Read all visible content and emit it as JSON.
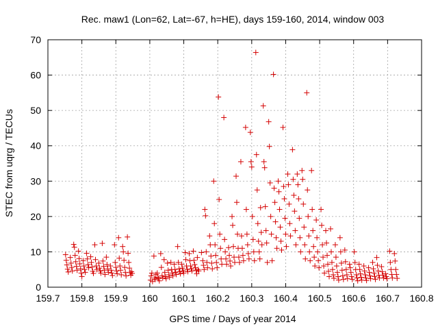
{
  "chart_data": {
    "type": "scatter",
    "title": "Rec. maw1 (Lon=62, Lat=-67, h=HE), days 159-160, 2014, window 003",
    "xlabel": "GPS time / Days of year 2014",
    "ylabel": "STEC from uqrg / TECUs",
    "xlim": [
      159.7,
      160.8
    ],
    "ylim": [
      0,
      70
    ],
    "xticks": [
      "159.7",
      "159.8",
      "159.9",
      "160",
      "160.1",
      "160.2",
      "160.3",
      "160.4",
      "160.5",
      "160.6",
      "160.7",
      "160.8"
    ],
    "yticks": [
      "0",
      "10",
      "20",
      "30",
      "40",
      "50",
      "60",
      "70"
    ],
    "grid": true,
    "marker": "plus",
    "color": "#d40000",
    "points": [
      [
        159.752,
        9.2
      ],
      [
        159.754,
        7.6
      ],
      [
        159.756,
        6.3
      ],
      [
        159.758,
        5.1
      ],
      [
        159.76,
        4.3
      ],
      [
        159.766,
        8.4
      ],
      [
        159.768,
        6.8
      ],
      [
        159.77,
        5.6
      ],
      [
        159.772,
        4.6
      ],
      [
        159.776,
        12.1
      ],
      [
        159.778,
        11.3
      ],
      [
        159.78,
        9.0
      ],
      [
        159.782,
        7.2
      ],
      [
        159.784,
        5.9
      ],
      [
        159.786,
        4.8
      ],
      [
        159.79,
        10.2
      ],
      [
        159.792,
        8.1
      ],
      [
        159.794,
        6.6
      ],
      [
        159.796,
        5.2
      ],
      [
        159.798,
        4.0
      ],
      [
        159.8,
        3.0
      ],
      [
        159.804,
        7.5
      ],
      [
        159.806,
        6.0
      ],
      [
        159.808,
        5.0
      ],
      [
        159.81,
        4.2
      ],
      [
        159.814,
        9.6
      ],
      [
        159.816,
        8.0
      ],
      [
        159.818,
        6.4
      ],
      [
        159.82,
        5.5
      ],
      [
        159.826,
        8.6
      ],
      [
        159.828,
        7.0
      ],
      [
        159.83,
        5.7
      ],
      [
        159.832,
        4.5
      ],
      [
        159.834,
        3.9
      ],
      [
        159.838,
        12.0
      ],
      [
        159.84,
        7.8
      ],
      [
        159.842,
        6.0
      ],
      [
        159.844,
        5.0
      ],
      [
        159.85,
        6.8
      ],
      [
        159.852,
        5.4
      ],
      [
        159.854,
        4.6
      ],
      [
        159.856,
        4.0
      ],
      [
        159.86,
        12.4
      ],
      [
        159.862,
        7.4
      ],
      [
        159.864,
        5.9
      ],
      [
        159.866,
        4.8
      ],
      [
        159.868,
        3.6
      ],
      [
        159.872,
        8.5
      ],
      [
        159.874,
        6.4
      ],
      [
        159.876,
        5.2
      ],
      [
        159.878,
        4.2
      ],
      [
        159.884,
        6.0
      ],
      [
        159.886,
        4.8
      ],
      [
        159.888,
        4.0
      ],
      [
        159.89,
        3.3
      ],
      [
        159.896,
        12.0
      ],
      [
        159.898,
        7.0
      ],
      [
        159.9,
        5.6
      ],
      [
        159.902,
        4.6
      ],
      [
        159.904,
        3.8
      ],
      [
        159.908,
        14.0
      ],
      [
        159.91,
        8.2
      ],
      [
        159.912,
        6.0
      ],
      [
        159.914,
        4.8
      ],
      [
        159.916,
        3.5
      ],
      [
        159.92,
        11.5
      ],
      [
        159.922,
        10.0
      ],
      [
        159.924,
        7.6
      ],
      [
        159.926,
        5.6
      ],
      [
        159.928,
        4.2
      ],
      [
        159.93,
        3.2
      ],
      [
        159.934,
        14.2
      ],
      [
        159.936,
        9.6
      ],
      [
        159.938,
        7.0
      ],
      [
        159.94,
        5.4
      ],
      [
        159.942,
        4.1
      ],
      [
        159.944,
        3.4
      ],
      [
        159.946,
        4.4
      ],
      [
        159.948,
        3.9
      ],
      [
        160.002,
        2.0
      ],
      [
        160.004,
        3.2
      ],
      [
        160.006,
        4.0
      ],
      [
        160.008,
        1.6
      ],
      [
        160.012,
        8.8
      ],
      [
        160.014,
        2.6
      ],
      [
        160.016,
        2.2
      ],
      [
        160.018,
        3.6
      ],
      [
        160.022,
        4.0
      ],
      [
        160.024,
        2.8
      ],
      [
        160.026,
        2.4
      ],
      [
        160.028,
        1.8
      ],
      [
        160.032,
        9.5
      ],
      [
        160.034,
        5.6
      ],
      [
        160.036,
        3.2
      ],
      [
        160.038,
        2.6
      ],
      [
        160.042,
        7.8
      ],
      [
        160.044,
        4.2
      ],
      [
        160.046,
        3.0
      ],
      [
        160.048,
        2.4
      ],
      [
        160.052,
        6.8
      ],
      [
        160.054,
        4.8
      ],
      [
        160.056,
        3.5
      ],
      [
        160.058,
        2.8
      ],
      [
        160.062,
        7.0
      ],
      [
        160.064,
        5.0
      ],
      [
        160.066,
        4.0
      ],
      [
        160.068,
        3.2
      ],
      [
        160.072,
        6.5
      ],
      [
        160.074,
        5.0
      ],
      [
        160.076,
        4.2
      ],
      [
        160.078,
        3.6
      ],
      [
        160.082,
        11.5
      ],
      [
        160.084,
        7.0
      ],
      [
        160.086,
        5.2
      ],
      [
        160.088,
        4.4
      ],
      [
        160.09,
        3.8
      ],
      [
        160.094,
        6.5
      ],
      [
        160.096,
        5.4
      ],
      [
        160.098,
        4.6
      ],
      [
        160.1,
        4.0
      ],
      [
        160.104,
        9.8
      ],
      [
        160.106,
        7.8
      ],
      [
        160.108,
        6.0
      ],
      [
        160.11,
        5.0
      ],
      [
        160.112,
        4.4
      ],
      [
        160.116,
        9.5
      ],
      [
        160.118,
        7.5
      ],
      [
        160.12,
        6.0
      ],
      [
        160.122,
        5.2
      ],
      [
        160.124,
        4.6
      ],
      [
        160.128,
        10.2
      ],
      [
        160.13,
        7.6
      ],
      [
        160.132,
        6.4
      ],
      [
        160.134,
        5.5
      ],
      [
        160.136,
        4.8
      ],
      [
        160.138,
        3.8
      ],
      [
        160.14,
        8.4
      ],
      [
        160.142,
        5.0
      ],
      [
        160.144,
        4.6
      ],
      [
        160.152,
        9.8
      ],
      [
        160.156,
        7.5
      ],
      [
        160.158,
        6.2
      ],
      [
        160.16,
        5.0
      ],
      [
        160.162,
        22.0
      ],
      [
        160.164,
        20.2
      ],
      [
        160.166,
        10.0
      ],
      [
        160.168,
        7.0
      ],
      [
        160.17,
        5.5
      ],
      [
        160.176,
        14.5
      ],
      [
        160.178,
        12.0
      ],
      [
        160.18,
        8.8
      ],
      [
        160.182,
        6.8
      ],
      [
        160.184,
        5.2
      ],
      [
        160.188,
        30.0
      ],
      [
        160.19,
        18.0
      ],
      [
        160.192,
        12.0
      ],
      [
        160.194,
        9.0
      ],
      [
        160.196,
        7.0
      ],
      [
        160.198,
        5.5
      ],
      [
        160.202,
        53.8
      ],
      [
        160.204,
        24.8
      ],
      [
        160.206,
        15.0
      ],
      [
        160.208,
        11.0
      ],
      [
        160.21,
        8.0
      ],
      [
        160.212,
        6.5
      ],
      [
        160.218,
        48.0
      ],
      [
        160.22,
        13.5
      ],
      [
        160.222,
        10.0
      ],
      [
        160.224,
        8.0
      ],
      [
        160.226,
        6.5
      ],
      [
        160.232,
        11.2
      ],
      [
        160.234,
        9.0
      ],
      [
        160.236,
        7.4
      ],
      [
        160.238,
        6.0
      ],
      [
        160.242,
        20.0
      ],
      [
        160.244,
        17.5
      ],
      [
        160.246,
        11.5
      ],
      [
        160.248,
        8.5
      ],
      [
        160.25,
        7.0
      ],
      [
        160.254,
        31.4
      ],
      [
        160.256,
        24.0
      ],
      [
        160.258,
        15.0
      ],
      [
        160.26,
        11.0
      ],
      [
        160.262,
        8.5
      ],
      [
        160.264,
        7.0
      ],
      [
        160.268,
        35.5
      ],
      [
        160.27,
        14.5
      ],
      [
        160.272,
        11.0
      ],
      [
        160.274,
        9.0
      ],
      [
        160.276,
        7.5
      ],
      [
        160.282,
        45.2
      ],
      [
        160.284,
        22.0
      ],
      [
        160.286,
        15.0
      ],
      [
        160.288,
        12.0
      ],
      [
        160.29,
        9.5
      ],
      [
        160.292,
        8.0
      ],
      [
        160.296,
        43.8
      ],
      [
        160.298,
        35.5
      ],
      [
        160.3,
        34.0
      ],
      [
        160.302,
        20.0
      ],
      [
        160.304,
        13.5
      ],
      [
        160.306,
        10.0
      ],
      [
        160.308,
        7.5
      ],
      [
        160.312,
        66.4
      ],
      [
        160.314,
        37.5
      ],
      [
        160.316,
        27.5
      ],
      [
        160.318,
        18.0
      ],
      [
        160.32,
        13.0
      ],
      [
        160.322,
        10.0
      ],
      [
        160.324,
        8.0
      ],
      [
        160.326,
        22.5
      ],
      [
        160.328,
        15.5
      ],
      [
        160.33,
        12.0
      ],
      [
        160.334,
        51.3
      ],
      [
        160.336,
        35.5
      ],
      [
        160.338,
        33.8
      ],
      [
        160.34,
        22.8
      ],
      [
        160.342,
        16.0
      ],
      [
        160.344,
        12.5
      ],
      [
        160.346,
        7.0
      ],
      [
        160.35,
        46.8
      ],
      [
        160.352,
        39.8
      ],
      [
        160.354,
        29.5
      ],
      [
        160.356,
        20.0
      ],
      [
        160.358,
        15.0
      ],
      [
        160.36,
        7.5
      ],
      [
        160.364,
        60.2
      ],
      [
        160.366,
        28.0
      ],
      [
        160.368,
        24.0
      ],
      [
        160.37,
        18.5
      ],
      [
        160.372,
        14.0
      ],
      [
        160.374,
        11.0
      ],
      [
        160.378,
        30.0
      ],
      [
        160.38,
        27.0
      ],
      [
        160.382,
        22.0
      ],
      [
        160.384,
        17.0
      ],
      [
        160.386,
        13.0
      ],
      [
        160.388,
        10.5
      ],
      [
        160.392,
        45.2
      ],
      [
        160.394,
        28.5
      ],
      [
        160.396,
        25.0
      ],
      [
        160.398,
        19.5
      ],
      [
        160.4,
        15.0
      ],
      [
        160.402,
        11.5
      ],
      [
        160.406,
        32.0
      ],
      [
        160.408,
        29.0
      ],
      [
        160.41,
        23.5
      ],
      [
        160.412,
        18.0
      ],
      [
        160.414,
        14.5
      ],
      [
        160.42,
        38.9
      ],
      [
        160.422,
        30.5
      ],
      [
        160.424,
        26.0
      ],
      [
        160.426,
        21.5
      ],
      [
        160.428,
        16.0
      ],
      [
        160.43,
        12.0
      ],
      [
        160.434,
        32.0
      ],
      [
        160.436,
        29.0
      ],
      [
        160.438,
        25.0
      ],
      [
        160.44,
        19.5
      ],
      [
        160.442,
        14.0
      ],
      [
        160.444,
        10.0
      ],
      [
        160.448,
        33.0
      ],
      [
        160.45,
        30.5
      ],
      [
        160.452,
        23.5
      ],
      [
        160.454,
        17.0
      ],
      [
        160.456,
        12.0
      ],
      [
        160.458,
        8.0
      ],
      [
        160.462,
        55.0
      ],
      [
        160.464,
        27.5
      ],
      [
        160.466,
        20.0
      ],
      [
        160.468,
        14.5
      ],
      [
        160.47,
        10.0
      ],
      [
        160.472,
        7.5
      ],
      [
        160.476,
        33.0
      ],
      [
        160.478,
        22.0
      ],
      [
        160.48,
        16.0
      ],
      [
        160.482,
        11.5
      ],
      [
        160.484,
        8.5
      ],
      [
        160.486,
        6.0
      ],
      [
        160.49,
        19.0
      ],
      [
        160.492,
        14.0
      ],
      [
        160.494,
        10.0
      ],
      [
        160.496,
        7.5
      ],
      [
        160.498,
        5.5
      ],
      [
        160.504,
        22.0
      ],
      [
        160.506,
        17.5
      ],
      [
        160.508,
        12.0
      ],
      [
        160.51,
        8.5
      ],
      [
        160.512,
        6.0
      ],
      [
        160.514,
        4.0
      ],
      [
        160.518,
        16.0
      ],
      [
        160.52,
        12.5
      ],
      [
        160.522,
        9.0
      ],
      [
        160.524,
        6.5
      ],
      [
        160.526,
        4.5
      ],
      [
        160.528,
        3.0
      ],
      [
        160.532,
        16.5
      ],
      [
        160.534,
        10.0
      ],
      [
        160.536,
        7.0
      ],
      [
        160.538,
        5.0
      ],
      [
        160.54,
        3.5
      ],
      [
        160.542,
        2.5
      ],
      [
        160.546,
        12.0
      ],
      [
        160.548,
        8.5
      ],
      [
        160.55,
        6.0
      ],
      [
        160.552,
        4.2
      ],
      [
        160.554,
        3.0
      ],
      [
        160.556,
        2.0
      ],
      [
        160.56,
        14.0
      ],
      [
        160.562,
        10.0
      ],
      [
        160.564,
        6.8
      ],
      [
        160.566,
        4.8
      ],
      [
        160.568,
        3.2
      ],
      [
        160.57,
        2.2
      ],
      [
        160.574,
        10.5
      ],
      [
        160.576,
        7.2
      ],
      [
        160.578,
        5.0
      ],
      [
        160.58,
        3.5
      ],
      [
        160.582,
        2.4
      ],
      [
        160.588,
        6.5
      ],
      [
        160.59,
        5.5
      ],
      [
        160.592,
        4.2
      ],
      [
        160.594,
        3.0
      ],
      [
        160.596,
        2.2
      ],
      [
        160.602,
        10.0
      ],
      [
        160.604,
        7.0
      ],
      [
        160.606,
        5.0
      ],
      [
        160.608,
        3.5
      ],
      [
        160.61,
        2.6
      ],
      [
        160.612,
        1.8
      ],
      [
        160.616,
        6.5
      ],
      [
        160.618,
        5.0
      ],
      [
        160.62,
        3.8
      ],
      [
        160.622,
        2.8
      ],
      [
        160.624,
        2.0
      ],
      [
        160.63,
        6.0
      ],
      [
        160.632,
        4.6
      ],
      [
        160.634,
        3.5
      ],
      [
        160.636,
        2.6
      ],
      [
        160.638,
        1.9
      ],
      [
        160.644,
        5.5
      ],
      [
        160.646,
        4.2
      ],
      [
        160.648,
        3.2
      ],
      [
        160.65,
        2.4
      ],
      [
        160.656,
        7.0
      ],
      [
        160.658,
        5.2
      ],
      [
        160.66,
        4.0
      ],
      [
        160.662,
        3.0
      ],
      [
        160.664,
        2.2
      ],
      [
        160.668,
        8.4
      ],
      [
        160.67,
        6.2
      ],
      [
        160.672,
        4.6
      ],
      [
        160.674,
        3.4
      ],
      [
        160.676,
        2.6
      ],
      [
        160.682,
        5.8
      ],
      [
        160.684,
        4.4
      ],
      [
        160.686,
        3.4
      ],
      [
        160.688,
        2.6
      ],
      [
        160.694,
        3.8
      ],
      [
        160.696,
        3.0
      ],
      [
        160.698,
        2.4
      ],
      [
        160.706,
        10.2
      ],
      [
        160.708,
        7.0
      ],
      [
        160.71,
        5.0
      ],
      [
        160.712,
        3.6
      ],
      [
        160.714,
        2.6
      ],
      [
        160.72,
        9.5
      ],
      [
        160.722,
        7.4
      ],
      [
        160.724,
        5.0
      ],
      [
        160.726,
        3.6
      ],
      [
        160.728,
        2.5
      ]
    ]
  }
}
